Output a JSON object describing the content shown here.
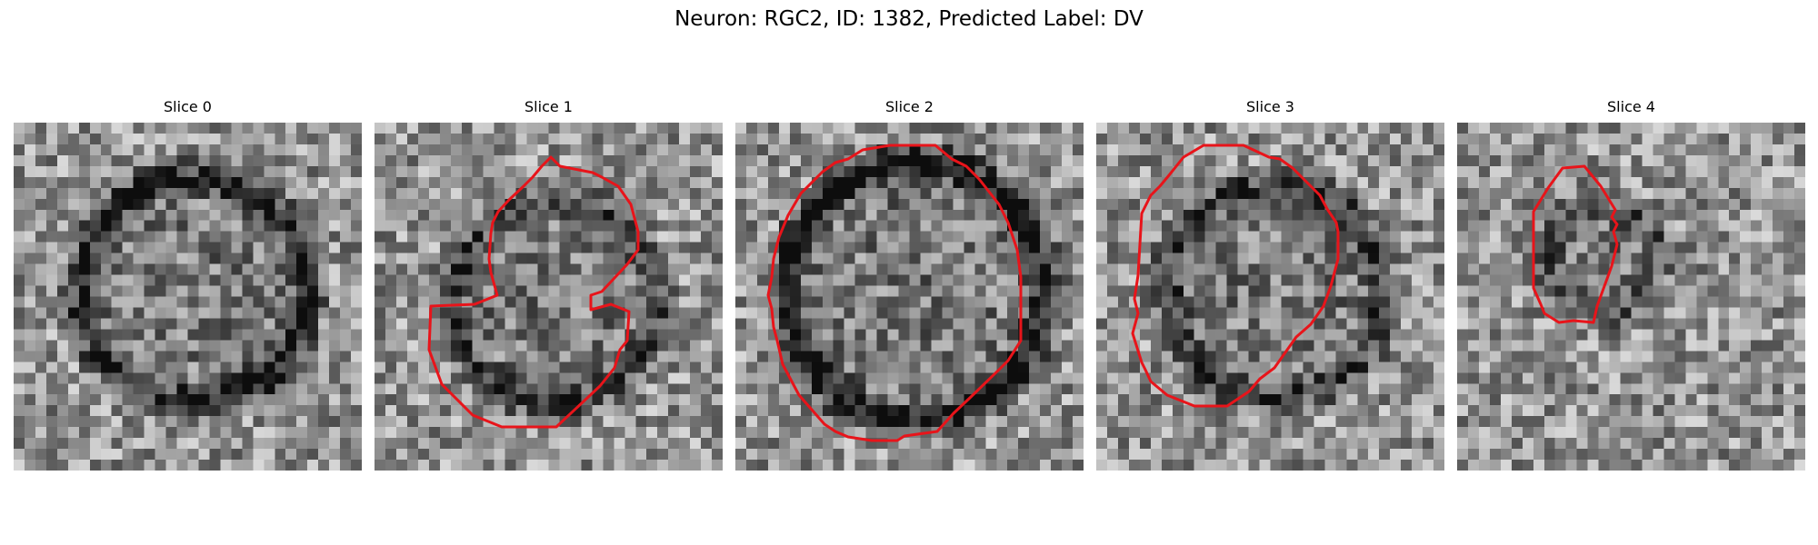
{
  "figure": {
    "title": "Neuron: RGC2, ID: 1382, Predicted Label: DV"
  },
  "colors": {
    "contour": "#e8141a"
  },
  "slices": [
    {
      "title": "Slice 0",
      "has_contour": false
    },
    {
      "title": "Slice 1",
      "has_contour": true
    },
    {
      "title": "Slice 2",
      "has_contour": true
    },
    {
      "title": "Slice 3",
      "has_contour": true
    },
    {
      "title": "Slice 4",
      "has_contour": true
    }
  ]
}
